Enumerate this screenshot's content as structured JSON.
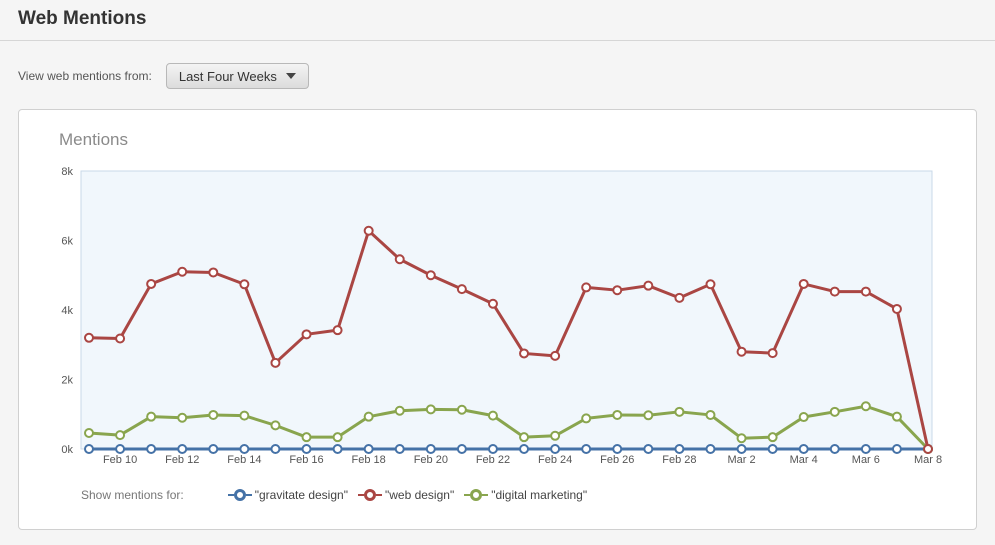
{
  "header": {
    "title": "Web Mentions"
  },
  "filter": {
    "label": "View web mentions from:",
    "selected": "Last Four Weeks"
  },
  "panel": {
    "title": "Mentions"
  },
  "legend": {
    "title": "Show mentions for:"
  },
  "chart_data": {
    "type": "line",
    "title": "Mentions",
    "ylim": [
      0,
      8000
    ],
    "yticks": [
      {
        "value": 0,
        "label": "0k"
      },
      {
        "value": 2000,
        "label": "2k"
      },
      {
        "value": 4000,
        "label": "4k"
      },
      {
        "value": 6000,
        "label": "6k"
      },
      {
        "value": 8000,
        "label": "8k"
      }
    ],
    "x": [
      "Feb 9",
      "Feb 10",
      "Feb 11",
      "Feb 12",
      "Feb 13",
      "Feb 14",
      "Feb 15",
      "Feb 16",
      "Feb 17",
      "Feb 18",
      "Feb 19",
      "Feb 20",
      "Feb 21",
      "Feb 22",
      "Feb 23",
      "Feb 24",
      "Feb 25",
      "Feb 26",
      "Feb 27",
      "Feb 28",
      "Mar 1",
      "Mar 2",
      "Mar 3",
      "Mar 4",
      "Mar 5",
      "Mar 6",
      "Mar 7",
      "Mar 8"
    ],
    "xtick_labels": [
      "Feb 10",
      "Feb 12",
      "Feb 14",
      "Feb 16",
      "Feb 18",
      "Feb 20",
      "Feb 22",
      "Feb 24",
      "Feb 26",
      "Feb 28",
      "Mar 2",
      "Mar 4",
      "Mar 6",
      "Mar 8"
    ],
    "grid": false,
    "legend_position": "bottom",
    "series": [
      {
        "name": "\"gravitate design\"",
        "color": "#4572a7",
        "values": [
          0,
          0,
          0,
          0,
          0,
          0,
          0,
          0,
          0,
          0,
          0,
          0,
          0,
          0,
          0,
          0,
          0,
          0,
          0,
          0,
          0,
          0,
          0,
          0,
          0,
          0,
          0,
          0
        ]
      },
      {
        "name": "\"web design\"",
        "color": "#aa4643",
        "values": [
          3200,
          3180,
          4750,
          5100,
          5080,
          4740,
          2480,
          3300,
          3420,
          6280,
          5460,
          5000,
          4600,
          4180,
          2750,
          2680,
          4650,
          4570,
          4700,
          4350,
          4740,
          2800,
          2760,
          4750,
          4530,
          4530,
          4030,
          0
        ]
      },
      {
        "name": "\"digital marketing\"",
        "color": "#89a54e",
        "values": [
          460,
          400,
          930,
          900,
          980,
          960,
          680,
          340,
          340,
          930,
          1100,
          1140,
          1130,
          960,
          340,
          380,
          880,
          980,
          970,
          1070,
          980,
          310,
          340,
          920,
          1070,
          1230,
          930,
          0
        ]
      }
    ]
  }
}
